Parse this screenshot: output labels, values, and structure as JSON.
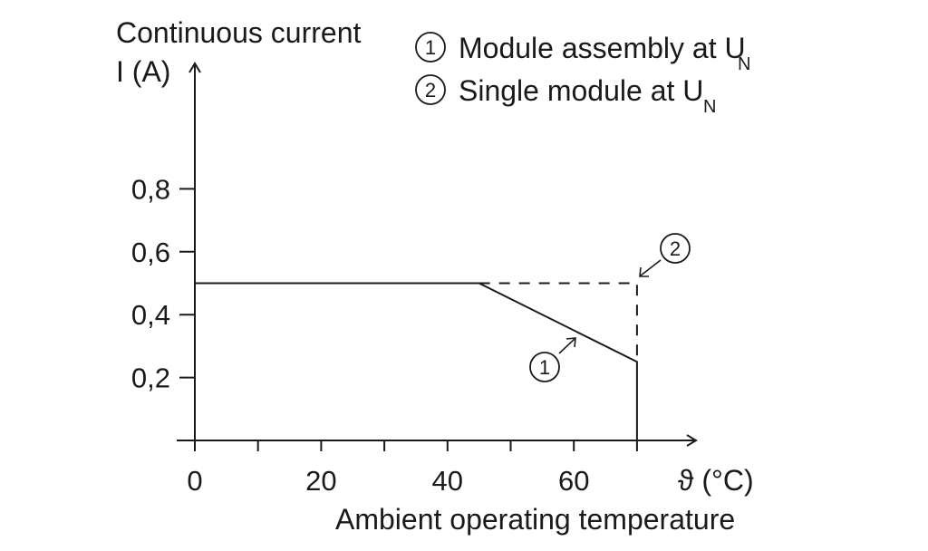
{
  "chart_data": {
    "type": "line",
    "ylabel_line1": "Continuous current",
    "ylabel_line2": "I (A)",
    "xlabel": "Ambient operating temperature",
    "x_unit": "ϑ (°C)",
    "xlim": [
      0,
      80
    ],
    "ylim": [
      0,
      1.0
    ],
    "x_ticks": [
      0,
      10,
      20,
      30,
      40,
      50,
      60,
      70
    ],
    "x_tick_labels": [
      {
        "x": 0,
        "label": "0"
      },
      {
        "x": 20,
        "label": "20"
      },
      {
        "x": 40,
        "label": "40"
      },
      {
        "x": 60,
        "label": "60"
      }
    ],
    "y_ticks": [
      {
        "y": 0.2,
        "label": "0,2"
      },
      {
        "y": 0.4,
        "label": "0,4"
      },
      {
        "y": 0.6,
        "label": "0,6"
      },
      {
        "y": 0.8,
        "label": "0,8"
      }
    ],
    "legend": [
      {
        "marker": "1",
        "text": "Module assembly at U",
        "subscript": "N"
      },
      {
        "marker": "2",
        "text": "Single module at U",
        "subscript": "N"
      }
    ],
    "series": [
      {
        "marker": "1",
        "style": "solid",
        "points": [
          [
            0,
            0.5
          ],
          [
            45,
            0.5
          ],
          [
            70,
            0.25
          ],
          [
            70,
            0
          ]
        ]
      },
      {
        "marker": "2",
        "style": "dashed",
        "points": [
          [
            45,
            0.5
          ],
          [
            70,
            0.5
          ],
          [
            70,
            0.25
          ]
        ]
      }
    ],
    "annotations": [
      {
        "marker": "1",
        "target": [
          58,
          0.34
        ]
      },
      {
        "marker": "2",
        "target": [
          70,
          0.5
        ]
      }
    ]
  }
}
